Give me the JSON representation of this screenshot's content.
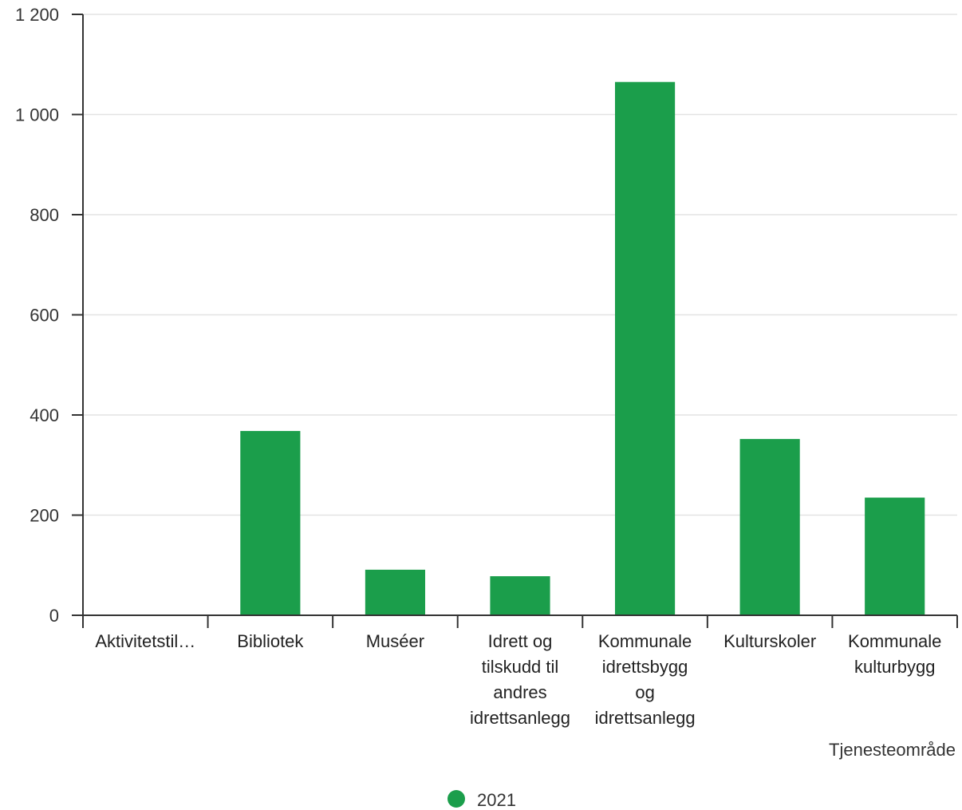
{
  "chart_data": {
    "type": "bar",
    "categories": [
      [
        "Aktivitetstil…"
      ],
      [
        "Bibliotek"
      ],
      [
        "Muséer"
      ],
      [
        "Idrett og",
        "tilskudd til",
        "andres",
        "idrettsanlegg"
      ],
      [
        "Kommunale",
        "idrettsbygg",
        "og",
        "idrettsanlegg"
      ],
      [
        "Kulturskoler"
      ],
      [
        "Kommunale",
        "kulturbygg"
      ]
    ],
    "series": [
      {
        "name": "2021",
        "values": [
          0,
          368,
          91,
          78,
          1065,
          352,
          235
        ],
        "color": "#1b9e4b"
      }
    ],
    "xlabel": "Tjenesteområde",
    "ylabel": "",
    "ylim": [
      0,
      1200
    ],
    "yticks": [
      0,
      200,
      400,
      600,
      800,
      1000,
      1200
    ],
    "ytick_labels": [
      "0",
      "200",
      "400",
      "600",
      "800",
      "1 000",
      "1 200"
    ],
    "grid": true,
    "legend": "bottom-center"
  }
}
